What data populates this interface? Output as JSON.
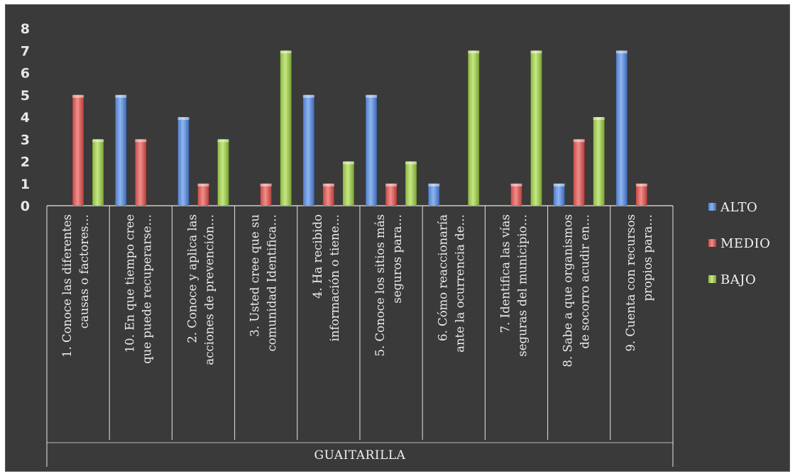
{
  "chart_data": {
    "type": "bar",
    "group_label": "GUAITARILLA",
    "ylim": [
      0,
      8
    ],
    "yticks": [
      0,
      1,
      2,
      3,
      4,
      5,
      6,
      7,
      8
    ],
    "legend_position": "right",
    "categories": [
      [
        "1. Conoce las diferentes",
        "causas o factores…"
      ],
      [
        "10. En que tiempo cree",
        "que puede recuperarse…"
      ],
      [
        "2. Conoce y aplica las",
        "acciones de prevención…"
      ],
      [
        "3. Usted cree que su",
        "comunidad Identifica…"
      ],
      [
        "4. Ha recibido",
        "información o tiene…"
      ],
      [
        "5. Conoce los sitios más",
        "seguros  para…"
      ],
      [
        "6. Cómo reaccionaría",
        "ante la ocurrencia de…"
      ],
      [
        "7. Identifica las vías",
        "seguras del municipio…"
      ],
      [
        "8. Sabe a que organismos",
        "de socorro acudir en…"
      ],
      [
        "9. Cuenta con recursos",
        "propios  para…"
      ]
    ],
    "series": [
      {
        "name": "ALTO",
        "color": "#5b8bd6",
        "values": [
          0,
          5,
          4,
          0,
          5,
          5,
          1,
          0,
          1,
          7
        ]
      },
      {
        "name": "MEDIO",
        "color": "#d9534f",
        "values": [
          5,
          3,
          1,
          1,
          1,
          1,
          0,
          1,
          3,
          1
        ]
      },
      {
        "name": "BAJO",
        "color": "#9acb4f",
        "values": [
          3,
          0,
          3,
          7,
          2,
          2,
          7,
          7,
          4,
          0
        ]
      }
    ]
  }
}
